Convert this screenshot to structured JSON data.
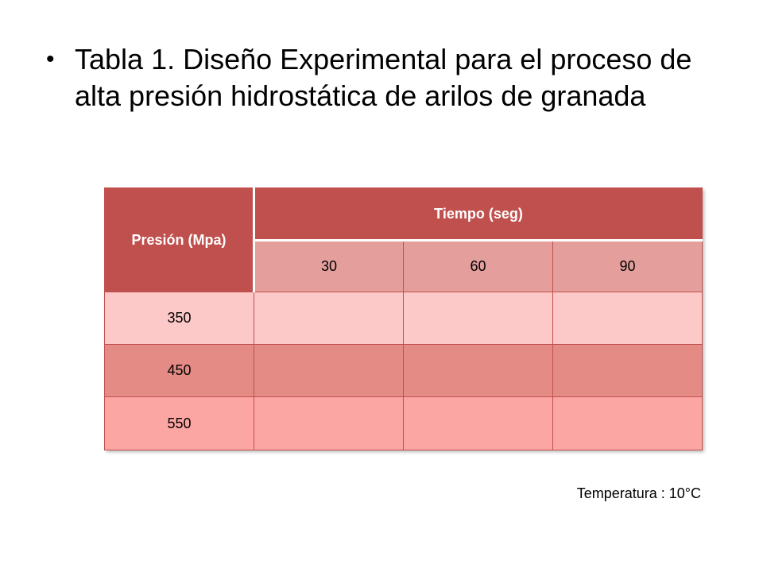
{
  "slide": {
    "bullet_text": "Tabla 1. Diseño Experimental para el proceso de alta presión hidrostática de arilos de granada"
  },
  "table": {
    "presion_header": "Presión (Mpa)",
    "tiempo_header": "Tiempo (seg)",
    "tiempo_values": [
      "30",
      "60",
      "90"
    ],
    "rows": [
      {
        "presion": "350",
        "cells": [
          "",
          "",
          ""
        ]
      },
      {
        "presion": "450",
        "cells": [
          "",
          "",
          ""
        ]
      },
      {
        "presion": "550",
        "cells": [
          "",
          "",
          ""
        ]
      }
    ]
  },
  "footer": {
    "temperature": "Temperatura : 10°C"
  },
  "colors": {
    "header": "#c0504d",
    "subheader": "#e49e9c",
    "row_350": "#fdc8c8",
    "row_450": "#e48b85",
    "row_550": "#fca6a4"
  }
}
